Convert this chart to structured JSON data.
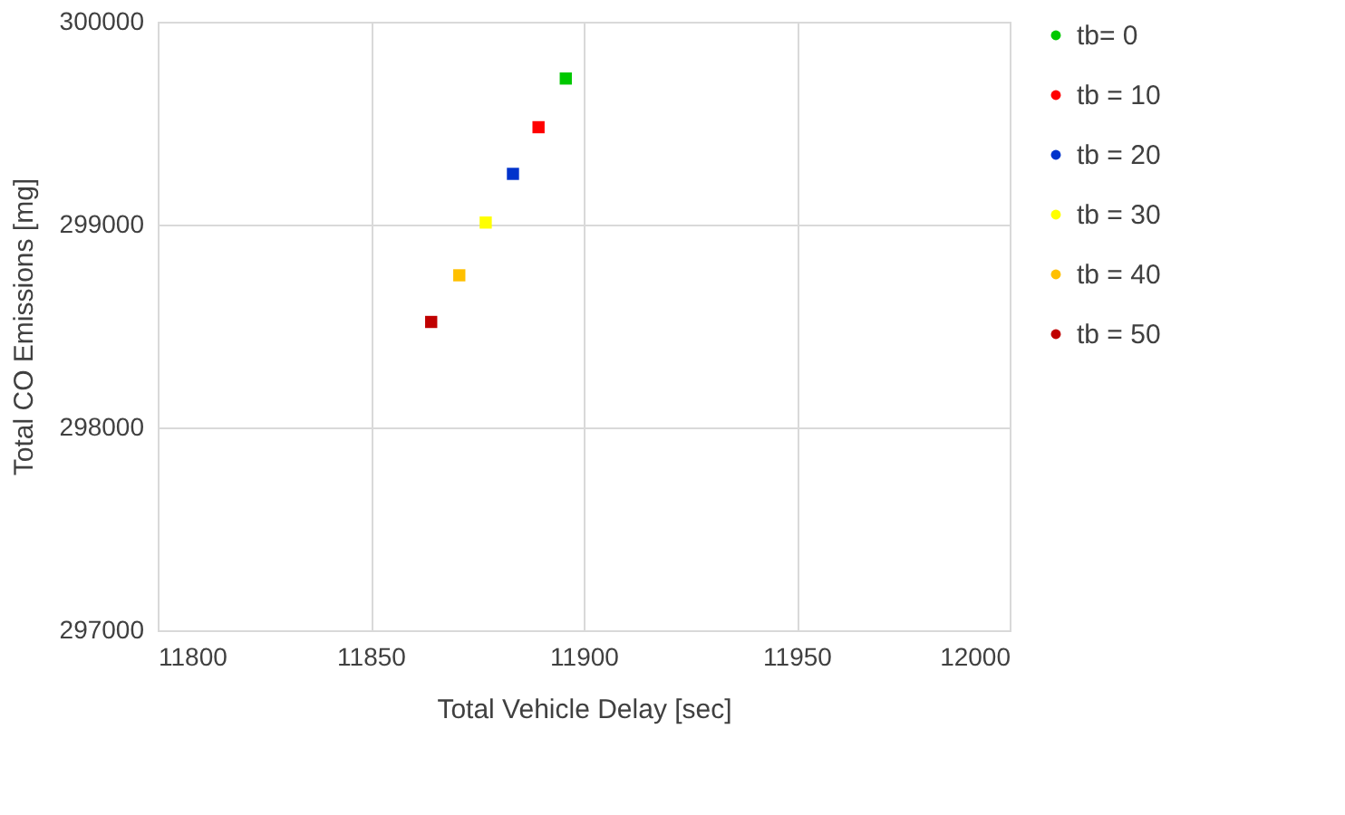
{
  "chart_data": {
    "type": "scatter",
    "xlabel": "Total Vehicle Delay [sec]",
    "ylabel": "Total CO Emissions [mg]",
    "xlim": [
      11800,
      12000
    ],
    "xticks": [
      11800,
      11850,
      11900,
      11950,
      12000
    ],
    "ylim": [
      297000,
      300000
    ],
    "yticks": [
      297000,
      298000,
      299000,
      300000
    ],
    "grid": true,
    "legend": "right",
    "marker": "square",
    "series": [
      {
        "name": "tb= 0",
        "color": "#00c800",
        "x": [
          11895.8
        ],
        "values": [
          299720
        ]
      },
      {
        "name": "tb = 10",
        "color": "#ff0000",
        "x": [
          11889.4
        ],
        "values": [
          299480
        ]
      },
      {
        "name": "tb = 20",
        "color": "#0033cc",
        "x": [
          11883.4
        ],
        "values": [
          299250
        ]
      },
      {
        "name": "tb = 30",
        "color": "#ffff00",
        "x": [
          11877
        ],
        "values": [
          299010
        ]
      },
      {
        "name": "tb = 40",
        "color": "#ffc000",
        "x": [
          11870.8
        ],
        "values": [
          298750
        ]
      },
      {
        "name": "tb = 50",
        "color": "#c00000",
        "x": [
          11864.2
        ],
        "values": [
          298520
        ]
      }
    ]
  }
}
